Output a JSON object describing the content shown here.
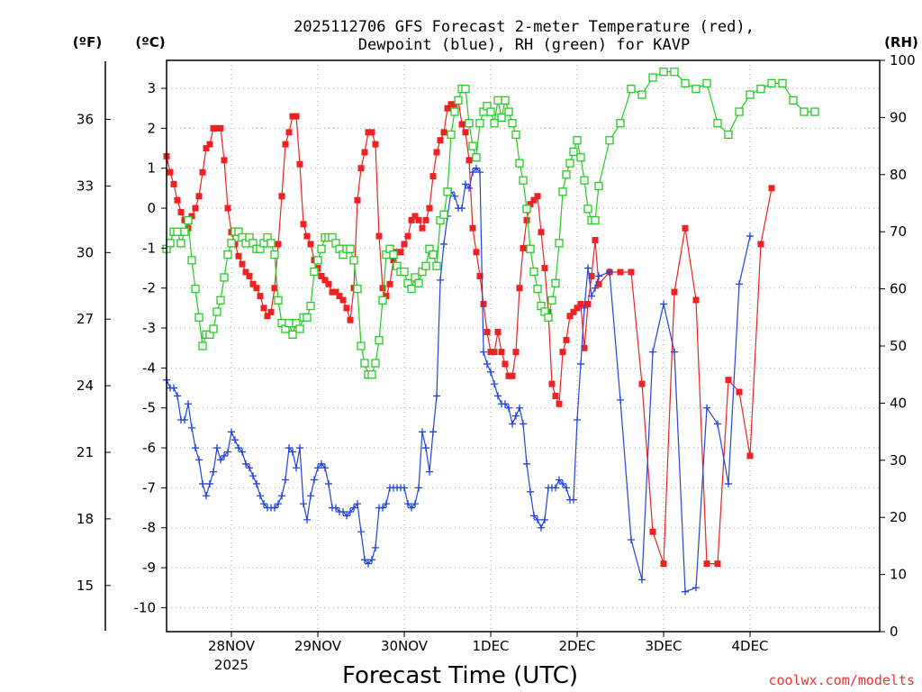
{
  "chart_data": {
    "type": "line",
    "title_line1": "2025112706 GFS Forecast 2-meter Temperature (red),",
    "title_line2": "Dewpoint (blue), RH (green) for KAVP",
    "xlabel": "Forecast Time (UTC)",
    "credit": "coolwx.com/modelts",
    "units": {
      "fahrenheit": "(ºF)",
      "celsius": "(ºC)",
      "rh": "(RH)"
    },
    "colors": {
      "temperature": "#ee2222",
      "dewpoint": "#2244dd",
      "rh": "#22cc22",
      "credit": "#ee3333"
    },
    "x_axis": {
      "unit": "hours since 2025-11-27 06Z",
      "range": [
        0,
        198
      ],
      "ticks": [
        {
          "hour": 18,
          "label": "28NOV",
          "sublabel": "2025"
        },
        {
          "hour": 42,
          "label": "29NOV",
          "sublabel": ""
        },
        {
          "hour": 66,
          "label": "30NOV",
          "sublabel": ""
        },
        {
          "hour": 90,
          "label": "1DEC",
          "sublabel": ""
        },
        {
          "hour": 114,
          "label": "2DEC",
          "sublabel": ""
        },
        {
          "hour": 138,
          "label": "3DEC",
          "sublabel": ""
        },
        {
          "hour": 162,
          "label": "4DEC",
          "sublabel": ""
        }
      ]
    },
    "y_celsius": {
      "range": [
        -10.6,
        3.7
      ],
      "ticks": [
        "3",
        "2",
        "1",
        "0",
        "-1",
        "-2",
        "-3",
        "-4",
        "-5",
        "-6",
        "-7",
        "-8",
        "-9",
        "-10"
      ]
    },
    "y_fahrenheit": {
      "ticks": [
        "36",
        "33",
        "30",
        "27",
        "24",
        "21",
        "18",
        "15"
      ]
    },
    "y_rh": {
      "range": [
        0,
        100
      ],
      "ticks": [
        "100",
        "90",
        "80",
        "70",
        "60",
        "50",
        "40",
        "30",
        "20",
        "10",
        "0"
      ]
    },
    "grid": true,
    "x_hours": [
      0,
      1,
      2,
      3,
      4,
      5,
      6,
      7,
      8,
      9,
      10,
      11,
      12,
      13,
      14,
      15,
      16,
      17,
      18,
      19,
      20,
      21,
      22,
      23,
      24,
      25,
      26,
      27,
      28,
      29,
      30,
      31,
      32,
      33,
      34,
      35,
      36,
      37,
      38,
      39,
      40,
      41,
      42,
      43,
      44,
      45,
      46,
      47,
      48,
      49,
      50,
      51,
      52,
      53,
      54,
      55,
      56,
      57,
      58,
      59,
      60,
      61,
      62,
      63,
      64,
      65,
      66,
      67,
      68,
      69,
      70,
      71,
      72,
      73,
      74,
      75,
      76,
      77,
      78,
      79,
      80,
      81,
      82,
      83,
      84,
      85,
      86,
      87,
      88,
      89,
      90,
      91,
      92,
      93,
      94,
      95,
      96,
      97,
      98,
      99,
      100,
      101,
      102,
      103,
      104,
      105,
      106,
      107,
      108,
      109,
      110,
      111,
      112,
      113,
      114,
      115,
      116,
      117,
      118,
      119,
      120,
      123,
      126,
      129,
      132,
      135,
      138,
      141,
      144,
      147,
      150,
      153,
      156,
      159,
      162,
      165,
      168,
      171,
      174,
      177,
      180,
      183,
      186,
      189,
      192,
      195,
      198
    ],
    "series": [
      {
        "name": "Temperature",
        "unit": "C",
        "values": [
          1.3,
          0.9,
          0.6,
          0.2,
          -0.1,
          -0.3,
          -0.5,
          -0.2,
          0.0,
          0.3,
          0.9,
          1.5,
          1.6,
          2.0,
          2.0,
          2.0,
          1.2,
          0.0,
          -0.6,
          -0.9,
          -1.2,
          -1.4,
          -1.6,
          -1.7,
          -1.9,
          -2.0,
          -2.2,
          -2.5,
          -2.7,
          -2.6,
          -2.0,
          -0.9,
          0.3,
          1.6,
          1.9,
          2.3,
          2.3,
          1.1,
          -0.4,
          -0.7,
          -0.9,
          -1.3,
          -1.5,
          -1.7,
          -1.8,
          -1.9,
          -2.1,
          -2.1,
          -2.2,
          -2.3,
          -2.5,
          -2.8,
          -2.0,
          0.2,
          1.0,
          1.4,
          1.9,
          1.9,
          1.6,
          -0.7,
          -2.0,
          -2.2,
          -1.9,
          -1.3,
          -1.1,
          -1.1,
          -0.9,
          -0.7,
          -0.3,
          -0.2,
          -0.3,
          -0.5,
          -0.3,
          0.0,
          0.8,
          1.4,
          1.7,
          1.9,
          2.5,
          2.6,
          2.6,
          2.7,
          2.1,
          1.9,
          1.2,
          -0.5,
          -1.1,
          -1.7,
          -2.4,
          -3.1,
          -3.6,
          -3.6,
          -3.1,
          -3.6,
          -3.9,
          -4.2,
          -4.2,
          -3.6,
          -2.0,
          -1.0,
          -0.3,
          0.1,
          0.2,
          0.3,
          -0.6,
          -1.5,
          -2.6,
          -4.4,
          -4.7,
          -4.9,
          -3.6,
          -3.3,
          -2.7,
          -2.6,
          -2.5,
          -2.4,
          -3.5,
          -2.4,
          -1.7,
          -0.8,
          -1.9,
          -1.6,
          -1.6,
          -1.6,
          -4.4,
          -8.1,
          -8.9,
          -2.1,
          -0.5,
          -2.3,
          -8.9,
          -8.9,
          -4.3,
          -4.6,
          -6.2,
          -0.9,
          0.5
        ],
        "marker": "filled-square"
      },
      {
        "name": "Dewpoint",
        "unit": "C",
        "values": [
          -4.3,
          -4.5,
          -4.5,
          -4.7,
          -5.3,
          -5.3,
          -4.9,
          -5.5,
          -6.0,
          -6.3,
          -6.9,
          -7.2,
          -6.9,
          -6.6,
          -6.0,
          -6.3,
          -6.2,
          -6.1,
          -5.6,
          -5.8,
          -6.0,
          -6.1,
          -6.4,
          -6.5,
          -6.7,
          -6.9,
          -7.2,
          -7.4,
          -7.5,
          -7.5,
          -7.5,
          -7.4,
          -7.2,
          -6.8,
          -6.0,
          -6.1,
          -6.5,
          -6.0,
          -7.4,
          -7.8,
          -7.2,
          -6.8,
          -6.5,
          -6.4,
          -6.5,
          -6.9,
          -7.5,
          -7.5,
          -7.6,
          -7.6,
          -7.7,
          -7.6,
          -7.5,
          -7.4,
          -8.1,
          -8.8,
          -8.9,
          -8.8,
          -8.5,
          -7.5,
          -7.5,
          -7.4,
          -7.0,
          -7.0,
          -7.0,
          -7.0,
          -7.0,
          -7.4,
          -7.5,
          -7.4,
          -7.0,
          -5.6,
          -6.0,
          -6.6,
          -5.6,
          -4.7,
          -1.8,
          -0.9,
          -0.2,
          0.4,
          0.3,
          0.0,
          0.0,
          0.6,
          0.5,
          0.9,
          1.0,
          0.9,
          -3.6,
          -3.9,
          -4.1,
          -4.4,
          -4.7,
          -4.9,
          -4.9,
          -5.0,
          -5.4,
          -5.2,
          -5.0,
          -5.4,
          -6.4,
          -7.1,
          -7.7,
          -7.8,
          -8.0,
          -7.8,
          -7.0,
          -7.0,
          -7.0,
          -6.8,
          -6.9,
          -7.0,
          -7.3,
          -7.3,
          -5.3,
          -3.9,
          -2.5,
          -1.5,
          -2.2,
          -2.0,
          -1.7,
          -1.6,
          -4.8,
          -8.3,
          -9.3,
          -3.6,
          -2.4,
          -3.6,
          -9.6,
          -9.5,
          -5.0,
          -5.4,
          -6.9,
          -1.9,
          -0.7
        ],
        "marker": "plus"
      },
      {
        "name": "Relative Humidity",
        "unit": "%",
        "values": [
          67,
          68,
          70,
          70,
          68,
          70,
          72,
          65,
          60,
          55,
          50,
          52,
          52,
          53,
          56,
          58,
          62,
          66,
          68,
          70,
          70,
          69,
          68,
          69,
          68,
          67,
          67,
          68,
          69,
          68,
          66,
          58,
          54,
          53,
          54,
          52,
          54,
          53,
          55,
          55,
          57,
          63,
          65,
          67,
          69,
          69,
          69,
          68,
          67,
          66,
          67,
          67,
          65,
          60,
          50,
          47,
          45,
          45,
          47,
          51,
          58,
          66,
          67,
          66,
          64,
          63,
          63,
          61,
          60,
          62,
          61,
          63,
          64,
          67,
          66,
          64,
          72,
          73,
          77,
          87,
          91,
          93,
          95,
          95,
          89,
          85,
          83,
          89,
          91,
          92,
          91,
          89,
          93,
          90,
          93,
          91,
          89,
          87,
          82,
          79,
          74,
          67,
          63,
          60,
          57,
          56,
          55,
          58,
          61,
          68,
          77,
          80,
          82,
          84,
          86,
          83,
          79,
          74,
          72,
          72,
          78,
          86,
          89,
          95,
          94,
          97,
          98,
          98,
          96,
          95,
          96,
          89,
          87,
          91,
          94,
          95,
          96,
          96,
          93,
          91,
          91
        ]
      }
    ]
  }
}
